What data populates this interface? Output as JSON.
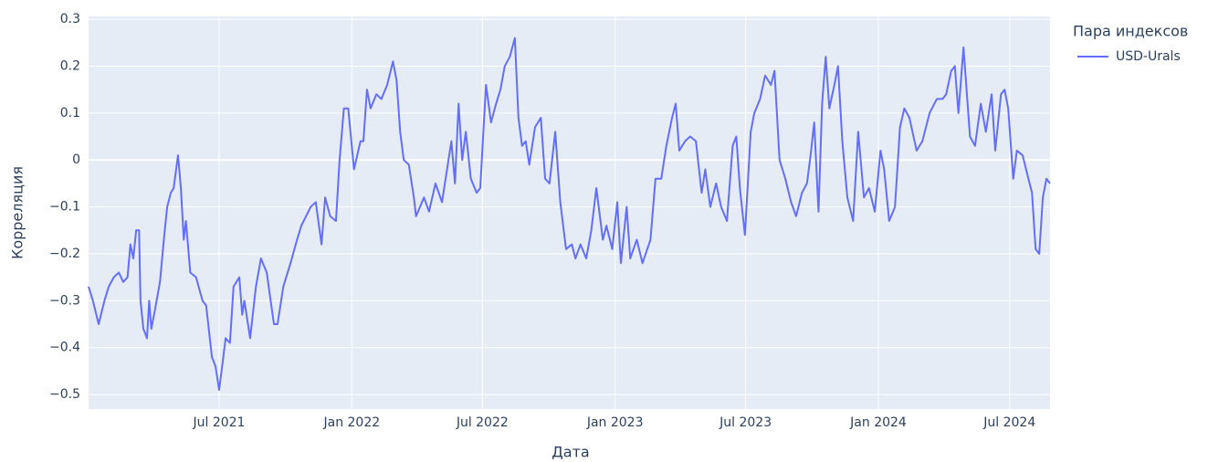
{
  "chart_data": {
    "type": "line",
    "x_label": "Дата",
    "y_label": "Корреляция",
    "legend_title": "Пара индексов",
    "xlim": [
      "2021-01-01",
      "2024-08-26"
    ],
    "ylim": [
      -0.531,
      0.306
    ],
    "xticks": [
      {
        "value": "2021-07-01",
        "label": "Jul 2021"
      },
      {
        "value": "2022-01-01",
        "label": "Jan 2022"
      },
      {
        "value": "2022-07-01",
        "label": "Jul 2022"
      },
      {
        "value": "2023-01-01",
        "label": "Jan 2023"
      },
      {
        "value": "2023-07-01",
        "label": "Jul 2023"
      },
      {
        "value": "2024-01-01",
        "label": "Jan 2024"
      },
      {
        "value": "2024-07-01",
        "label": "Jul 2024"
      }
    ],
    "yticks": [
      0.3,
      0.2,
      0.1,
      0,
      {
        "value": -0.1,
        "label": "−0.1"
      },
      {
        "value": -0.2,
        "label": "−0.2"
      },
      {
        "value": -0.3,
        "label": "−0.3"
      },
      {
        "value": -0.4,
        "label": "−0.4"
      },
      {
        "value": -0.5,
        "label": "−0.5"
      }
    ],
    "grid": true,
    "x": [
      "2021-01-01",
      "2021-01-07",
      "2021-01-15",
      "2021-01-23",
      "2021-01-29",
      "2021-02-05",
      "2021-02-12",
      "2021-02-18",
      "2021-02-24",
      "2021-02-28",
      "2021-03-04",
      "2021-03-08",
      "2021-03-12",
      "2021-03-14",
      "2021-03-18",
      "2021-03-23",
      "2021-03-26",
      "2021-03-29",
      "2021-04-03",
      "2021-04-10",
      "2021-04-16",
      "2021-04-20",
      "2021-04-25",
      "2021-04-29",
      "2021-05-05",
      "2021-05-09",
      "2021-05-13",
      "2021-05-16",
      "2021-05-22",
      "2021-05-30",
      "2021-06-08",
      "2021-06-13",
      "2021-06-21",
      "2021-06-26",
      "2021-07-01",
      "2021-07-06",
      "2021-07-10",
      "2021-07-16",
      "2021-07-21",
      "2021-07-29",
      "2021-08-02",
      "2021-08-05",
      "2021-08-13",
      "2021-08-21",
      "2021-08-28",
      "2021-09-05",
      "2021-09-15",
      "2021-09-20",
      "2021-09-28",
      "2021-10-08",
      "2021-10-17",
      "2021-10-23",
      "2021-11-05",
      "2021-11-12",
      "2021-11-20",
      "2021-11-25",
      "2021-12-02",
      "2021-12-10",
      "2021-12-15",
      "2021-12-21",
      "2021-12-27",
      "2022-01-04",
      "2022-01-13",
      "2022-01-17",
      "2022-01-22",
      "2022-01-27",
      "2022-02-04",
      "2022-02-11",
      "2022-02-19",
      "2022-02-27",
      "2022-03-04",
      "2022-03-09",
      "2022-03-14",
      "2022-03-21",
      "2022-03-28",
      "2022-03-31",
      "2022-04-11",
      "2022-04-18",
      "2022-04-27",
      "2022-05-06",
      "2022-05-14",
      "2022-05-19",
      "2022-05-24",
      "2022-05-29",
      "2022-06-03",
      "2022-06-08",
      "2022-06-15",
      "2022-06-23",
      "2022-06-28",
      "2022-07-06",
      "2022-07-13",
      "2022-07-20",
      "2022-07-26",
      "2022-08-01",
      "2022-08-08",
      "2022-08-15",
      "2022-08-20",
      "2022-08-25",
      "2022-08-30",
      "2022-09-04",
      "2022-09-12",
      "2022-09-20",
      "2022-09-26",
      "2022-10-02",
      "2022-10-10",
      "2022-10-17",
      "2022-10-25",
      "2022-11-02",
      "2022-11-07",
      "2022-11-14",
      "2022-11-22",
      "2022-11-29",
      "2022-12-06",
      "2022-12-15",
      "2022-12-20",
      "2022-12-28",
      "2023-01-04",
      "2023-01-09",
      "2023-01-17",
      "2023-01-22",
      "2023-01-31",
      "2023-02-08",
      "2023-02-19",
      "2023-02-26",
      "2023-03-06",
      "2023-03-13",
      "2023-03-21",
      "2023-03-26",
      "2023-03-31",
      "2023-04-08",
      "2023-04-15",
      "2023-04-23",
      "2023-05-01",
      "2023-05-06",
      "2023-05-13",
      "2023-05-21",
      "2023-05-28",
      "2023-06-05",
      "2023-06-13",
      "2023-06-18",
      "2023-06-23",
      "2023-06-30",
      "2023-07-08",
      "2023-07-13",
      "2023-07-21",
      "2023-07-28",
      "2023-08-05",
      "2023-08-10",
      "2023-08-17",
      "2023-08-25",
      "2023-09-02",
      "2023-09-09",
      "2023-09-17",
      "2023-09-24",
      "2023-09-29",
      "2023-10-04",
      "2023-10-10",
      "2023-10-15",
      "2023-10-20",
      "2023-10-25",
      "2023-11-01",
      "2023-11-06",
      "2023-11-12",
      "2023-11-19",
      "2023-11-27",
      "2023-12-04",
      "2023-12-12",
      "2023-12-19",
      "2023-12-27",
      "2024-01-04",
      "2024-01-09",
      "2024-01-16",
      "2024-01-24",
      "2024-01-31",
      "2024-02-06",
      "2024-02-13",
      "2024-02-23",
      "2024-03-02",
      "2024-03-12",
      "2024-03-22",
      "2024-03-30",
      "2024-04-04",
      "2024-04-11",
      "2024-04-16",
      "2024-04-21",
      "2024-04-28",
      "2024-05-07",
      "2024-05-14",
      "2024-05-22",
      "2024-05-29",
      "2024-06-06",
      "2024-06-11",
      "2024-06-19",
      "2024-06-24",
      "2024-06-29",
      "2024-07-06",
      "2024-07-11",
      "2024-07-19",
      "2024-07-27",
      "2024-08-01",
      "2024-08-06",
      "2024-08-11",
      "2024-08-16",
      "2024-08-21",
      "2024-08-26"
    ],
    "series": [
      {
        "name": "USD-Urals",
        "color": "#636efa",
        "values": [
          -0.27,
          -0.3,
          -0.35,
          -0.3,
          -0.27,
          -0.25,
          -0.24,
          -0.26,
          -0.25,
          -0.18,
          -0.21,
          -0.15,
          -0.15,
          -0.3,
          -0.36,
          -0.38,
          -0.3,
          -0.36,
          -0.32,
          -0.26,
          -0.16,
          -0.1,
          -0.07,
          -0.06,
          0.01,
          -0.06,
          -0.17,
          -0.13,
          -0.24,
          -0.25,
          -0.3,
          -0.31,
          -0.42,
          -0.44,
          -0.49,
          -0.43,
          -0.38,
          -0.39,
          -0.27,
          -0.25,
          -0.33,
          -0.3,
          -0.38,
          -0.27,
          -0.21,
          -0.24,
          -0.35,
          -0.35,
          -0.27,
          -0.22,
          -0.17,
          -0.14,
          -0.1,
          -0.09,
          -0.18,
          -0.08,
          -0.12,
          -0.13,
          0.0,
          0.11,
          0.11,
          -0.02,
          0.04,
          0.04,
          0.15,
          0.11,
          0.14,
          0.13,
          0.16,
          0.21,
          0.17,
          0.06,
          0.0,
          -0.01,
          -0.08,
          -0.12,
          -0.08,
          -0.11,
          -0.05,
          -0.09,
          -0.01,
          0.04,
          -0.05,
          0.12,
          0.0,
          0.06,
          -0.04,
          -0.07,
          -0.06,
          0.16,
          0.08,
          0.12,
          0.15,
          0.2,
          0.22,
          0.26,
          0.09,
          0.03,
          0.04,
          -0.01,
          0.07,
          0.09,
          -0.04,
          -0.05,
          0.06,
          -0.09,
          -0.19,
          -0.18,
          -0.21,
          -0.18,
          -0.21,
          -0.15,
          -0.06,
          -0.17,
          -0.14,
          -0.19,
          -0.09,
          -0.22,
          -0.1,
          -0.21,
          -0.17,
          -0.22,
          -0.17,
          -0.04,
          -0.04,
          0.03,
          0.09,
          0.12,
          0.02,
          0.04,
          0.05,
          0.04,
          -0.07,
          -0.02,
          -0.1,
          -0.05,
          -0.1,
          -0.13,
          0.03,
          0.05,
          -0.06,
          -0.16,
          0.06,
          0.1,
          0.13,
          0.18,
          0.16,
          0.19,
          0.0,
          -0.04,
          -0.09,
          -0.12,
          -0.07,
          -0.05,
          0.01,
          0.08,
          -0.11,
          0.12,
          0.22,
          0.11,
          0.16,
          0.2,
          0.04,
          -0.08,
          -0.13,
          0.06,
          -0.08,
          -0.06,
          -0.11,
          0.02,
          -0.02,
          -0.13,
          -0.1,
          0.07,
          0.11,
          0.09,
          0.02,
          0.04,
          0.1,
          0.13,
          0.13,
          0.14,
          0.19,
          0.2,
          0.1,
          0.24,
          0.05,
          0.03,
          0.12,
          0.06,
          0.14,
          0.02,
          0.14,
          0.15,
          0.11,
          -0.04,
          0.02,
          0.01,
          -0.04,
          -0.07,
          -0.19,
          -0.2,
          -0.08,
          -0.04,
          -0.05
        ]
      }
    ]
  }
}
